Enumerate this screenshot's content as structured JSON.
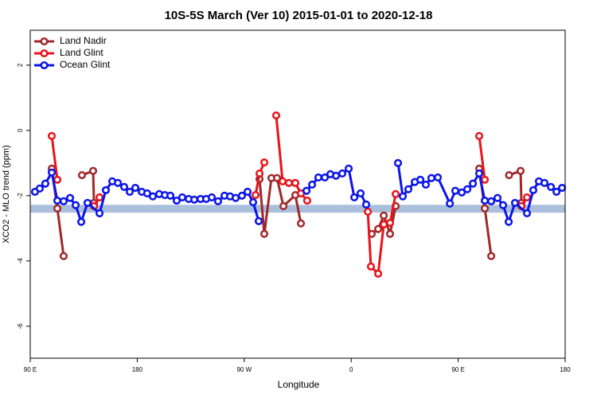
{
  "chart_data": {
    "type": "line",
    "title": "10S-5S March (Ver 10)   2015-01-01 to 2020-12-18",
    "xlabel": "Longitude",
    "ylabel": "XCO2 - MLO trend (ppm)",
    "xlim": [
      90,
      540
    ],
    "ylim": [
      -6.98,
      3.07
    ],
    "xticks": [
      {
        "value": 90,
        "label": "90 E"
      },
      {
        "value": 180,
        "label": "180"
      },
      {
        "value": 270,
        "label": "90 W"
      },
      {
        "value": 360,
        "label": "0"
      },
      {
        "value": 450,
        "label": "90 E"
      },
      {
        "value": 540,
        "label": "180"
      }
    ],
    "yticks": [
      -6,
      -4,
      -2,
      0,
      2
    ],
    "band": [
      -2.52,
      -2.28
    ],
    "band_color": "#a9bfdc",
    "legend": "top-left",
    "series": [
      {
        "name": "Land Nadir",
        "color": "#a0282a",
        "x": [
          108.1,
          112.8,
          118.1,
          null,
          133.5,
          142.9,
          143.6,
          null,
          282.9,
          286.9,
          292.9,
          297.6,
          303.0,
          313.0,
          317.7,
          null,
          377.3,
          382.7,
          387.4,
          392.7,
          397.4,
          null,
          467.7,
          472.4,
          477.8,
          null,
          492.8,
          502.5,
          503.2
        ],
        "values": [
          -1.17,
          -2.39,
          -3.85,
          null,
          -1.37,
          -1.24,
          -2.22,
          null,
          -1.49,
          -3.17,
          -1.46,
          -1.46,
          -2.32,
          -1.98,
          -2.85,
          null,
          -3.17,
          -3.02,
          -2.61,
          -3.17,
          -2.32,
          null,
          -1.17,
          -2.39,
          -3.85,
          null,
          -1.37,
          -1.24,
          -2.22
        ]
      },
      {
        "name": "Land Glint",
        "color": "#e8141b",
        "x": [
          108.1,
          112.8,
          null,
          143.6,
          148.3,
          null,
          279.5,
          282.9,
          286.9,
          null,
          296.9,
          302.3,
          307.6,
          313.0,
          317.7,
          323.0,
          null,
          374.0,
          376.6,
          382.7,
          387.4,
          392.7,
          397.4,
          null,
          467.7,
          472.4,
          null,
          503.2,
          507.9
        ],
        "values": [
          -0.17,
          -1.51,
          null,
          -2.32,
          -2.05,
          null,
          -1.98,
          -1.32,
          -0.98,
          null,
          0.46,
          -1.56,
          -1.61,
          -1.61,
          -1.93,
          -2.15,
          null,
          -2.49,
          -4.17,
          -4.39,
          -2.88,
          -2.83,
          -1.95,
          null,
          -0.17,
          -1.51,
          null,
          -2.32,
          -2.05
        ]
      },
      {
        "name": "Ocean Glint",
        "color": "#0a14e8",
        "x": [
          94.0,
          98.0,
          102.7,
          108.1,
          112.8,
          118.1,
          123.5,
          128.2,
          132.9,
          138.2,
          148.3,
          153.6,
          159.0,
          163.7,
          169.0,
          173.7,
          178.4,
          183.8,
          188.4,
          193.1,
          198.5,
          203.2,
          207.9,
          213.2,
          217.9,
          223.3,
          228.0,
          233.3,
          238.0,
          242.7,
          248.0,
          253.4,
          258.1,
          262.8,
          268.1,
          272.8,
          277.5,
          282.2,
          null,
          322.4,
          327.1,
          332.4,
          337.8,
          342.5,
          347.2,
          352.5,
          357.9,
          362.6,
          367.9,
          372.6,
          null,
          399.4,
          403.4,
          408.1,
          413.5,
          418.2,
          422.8,
          427.5,
          432.9,
          443.0,
          447.6,
          453.0,
          457.7,
          462.4,
          467.7,
          472.4,
          477.8,
          483.1,
          487.8,
          492.5,
          497.8,
          507.9,
          513.2,
          517.9,
          522.6,
          528.0,
          532.7,
          537.4
        ],
        "values": [
          -1.88,
          -1.78,
          -1.63,
          -1.29,
          -2.15,
          -2.17,
          -2.07,
          -2.29,
          -2.8,
          -2.22,
          -2.54,
          -1.83,
          -1.56,
          -1.61,
          -1.73,
          -1.88,
          -1.76,
          -1.88,
          -1.93,
          -2.02,
          -1.95,
          -1.98,
          -2.0,
          -2.15,
          -2.05,
          -2.1,
          -2.12,
          -2.1,
          -2.1,
          -2.05,
          -2.17,
          -2.0,
          -2.02,
          -2.07,
          -2.0,
          -1.88,
          -2.2,
          -2.78,
          null,
          -1.85,
          -1.66,
          -1.44,
          -1.44,
          -1.34,
          -1.39,
          -1.32,
          -1.17,
          -2.05,
          -1.93,
          -2.27,
          null,
          -1.0,
          -2.02,
          -1.8,
          -1.58,
          -1.51,
          -1.66,
          -1.46,
          -1.44,
          -2.24,
          -1.85,
          -1.9,
          -1.8,
          -1.63,
          -1.32,
          -2.15,
          -2.17,
          -2.07,
          -2.29,
          -2.8,
          -2.22,
          -2.54,
          -1.83,
          -1.56,
          -1.61,
          -1.73,
          -1.88,
          -1.76
        ]
      }
    ]
  }
}
